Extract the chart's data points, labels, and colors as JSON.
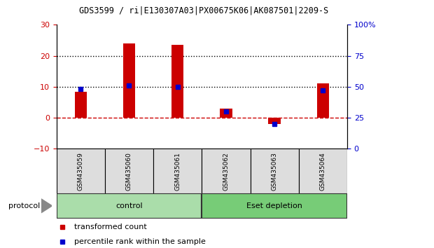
{
  "title": "GDS3599 / ri|E130307A03|PX00675K06|AK087501|2209-S",
  "categories": [
    "GSM435059",
    "GSM435060",
    "GSM435061",
    "GSM435062",
    "GSM435063",
    "GSM435064"
  ],
  "red_values": [
    8.5,
    24.0,
    23.5,
    3.0,
    -2.0,
    11.0
  ],
  "blue_pct": [
    48,
    51,
    50,
    30,
    20,
    47
  ],
  "ylim_left": [
    -10,
    30
  ],
  "ylim_right": [
    0,
    100
  ],
  "yticks_left": [
    -10,
    0,
    10,
    20,
    30
  ],
  "yticks_right": [
    0,
    25,
    50,
    75,
    100
  ],
  "ytick_labels_right": [
    "0",
    "25",
    "50",
    "75",
    "100%"
  ],
  "hlines": [
    10,
    20
  ],
  "red_color": "#cc0000",
  "blue_color": "#0000cc",
  "bar_width": 0.25,
  "control_color": "#aaddaa",
  "eset_color": "#77cc77",
  "protocol_label": "protocol",
  "legend_items": [
    {
      "color": "#cc0000",
      "label": "transformed count"
    },
    {
      "color": "#0000cc",
      "label": "percentile rank within the sample"
    }
  ],
  "sample_box_color": "#dddddd"
}
